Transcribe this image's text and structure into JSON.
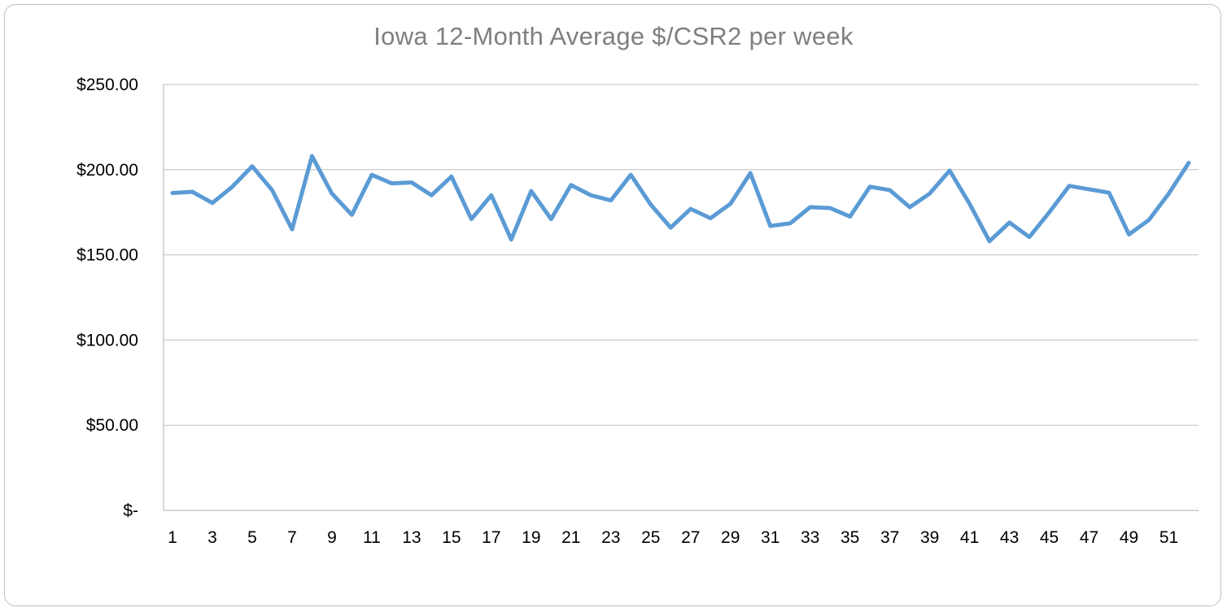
{
  "chart_data": {
    "type": "line",
    "title": "Iowa 12-Month Average $/CSR2 per week",
    "xlabel": "",
    "ylabel": "",
    "ylim": [
      0,
      250
    ],
    "y_ticks": [
      0,
      50,
      100,
      150,
      200,
      250
    ],
    "y_tick_labels": [
      "$-",
      "$50.00",
      "$100.00",
      "$150.00",
      "$200.00",
      "$250.00"
    ],
    "x": [
      1,
      2,
      3,
      4,
      5,
      6,
      7,
      8,
      9,
      10,
      11,
      12,
      13,
      14,
      15,
      16,
      17,
      18,
      19,
      20,
      21,
      22,
      23,
      24,
      25,
      26,
      27,
      28,
      29,
      30,
      31,
      32,
      33,
      34,
      35,
      36,
      37,
      38,
      39,
      40,
      41,
      42,
      43,
      44,
      45,
      46,
      47,
      48,
      49,
      50,
      51,
      52
    ],
    "x_tick_labels": [
      "1",
      "3",
      "5",
      "7",
      "9",
      "11",
      "13",
      "15",
      "17",
      "19",
      "21",
      "23",
      "25",
      "27",
      "29",
      "31",
      "33",
      "35",
      "37",
      "39",
      "41",
      "43",
      "45",
      "47",
      "49",
      "51"
    ],
    "series": [
      {
        "color": "#5b9bd5",
        "values": [
          186.3,
          187.0,
          180.5,
          190.0,
          202.0,
          188.0,
          165.0,
          208.0,
          186.0,
          173.5,
          197.0,
          192.0,
          192.5,
          185.0,
          196.0,
          171.0,
          185.0,
          159.0,
          187.5,
          171.0,
          191.0,
          185.0,
          182.0,
          197.0,
          179.5,
          166.0,
          177.0,
          171.5,
          180.0,
          198.0,
          167.0,
          168.5,
          178.0,
          177.5,
          172.5,
          190.0,
          188.0,
          178.0,
          186.0,
          199.5,
          180.0,
          158.0,
          169.0,
          160.5,
          175.0,
          190.5,
          188.5,
          186.5,
          162.0,
          170.5,
          186.0,
          204.0
        ]
      }
    ],
    "grid": true,
    "legend": "none"
  }
}
